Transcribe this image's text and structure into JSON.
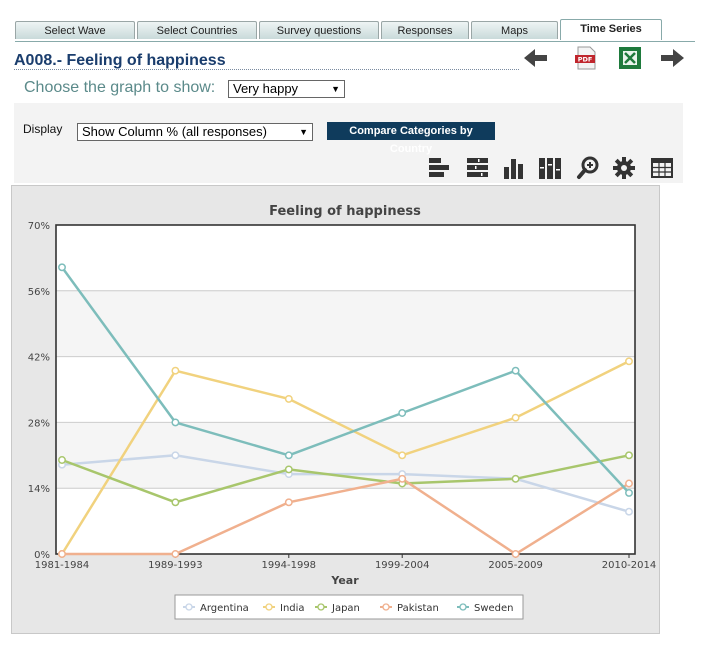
{
  "tabs": [
    {
      "label": "Select Wave",
      "active": false
    },
    {
      "label": "Select Countries",
      "active": false
    },
    {
      "label": "Survey questions",
      "active": false
    },
    {
      "label": "Responses",
      "active": false
    },
    {
      "label": "Maps",
      "active": false
    },
    {
      "label": "Time Series",
      "active": true
    }
  ],
  "page_title": "A008.- Feeling of happiness",
  "choose_label": "Choose the graph to show:",
  "graph_select_value": "Very happy",
  "display_label": "Display",
  "display_select_value": "Show Column % (all responses)",
  "compare_button_label": "Compare Categories by Country",
  "toolbar_icons": [
    "horizontal-bar-chart-icon",
    "stacked-bar-chart-icon",
    "column-chart-icon",
    "stacked-column-chart-icon",
    "zoom-icon",
    "settings-gear-icon",
    "table-icon"
  ],
  "nav_icons": [
    "arrow-left-icon",
    "pdf-icon",
    "excel-icon",
    "arrow-right-icon"
  ],
  "pdf_icon_text": "PDF",
  "chart_data": {
    "type": "line",
    "title": "Feeling of happiness",
    "xlabel": "Year",
    "ylabel": "",
    "categories": [
      "1981-1984",
      "1989-1993",
      "1994-1998",
      "1999-2004",
      "2005-2009",
      "2010-2014"
    ],
    "ylim": [
      0,
      70
    ],
    "yticks": [
      "0%",
      "14%",
      "28%",
      "42%",
      "56%",
      "70%"
    ],
    "grid": true,
    "legend_position": "bottom",
    "series": [
      {
        "name": "Argentina",
        "color": "#c9d6e8",
        "values": [
          19,
          21,
          17,
          17,
          16,
          9
        ]
      },
      {
        "name": "India",
        "color": "#f1d27e",
        "values": [
          0,
          39,
          33,
          21,
          29,
          41
        ]
      },
      {
        "name": "Japan",
        "color": "#a8c66c",
        "values": [
          20,
          11,
          18,
          15,
          16,
          21
        ]
      },
      {
        "name": "Pakistan",
        "color": "#f0b08e",
        "values": [
          0,
          0,
          11,
          16,
          0,
          15
        ]
      },
      {
        "name": "Sweden",
        "color": "#7dbdbb",
        "values": [
          61,
          28,
          21,
          30,
          39,
          13
        ]
      }
    ]
  }
}
